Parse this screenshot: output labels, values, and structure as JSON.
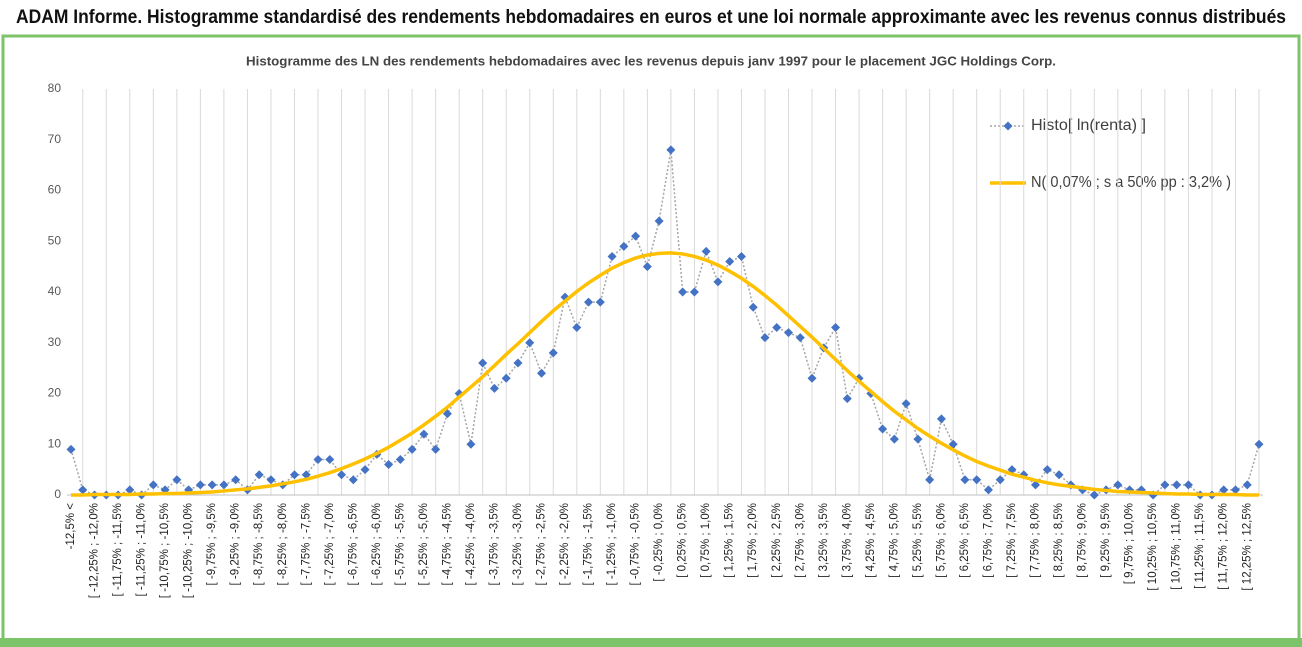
{
  "chart_data": {
    "type": "line",
    "title": "ADAM Informe. Histogramme standardisé des rendements hebdomadaires en euros et une loi normale approximante avec les revenus connus distribués",
    "subtitle": "Histogramme des LN des rendements hebdomadaires avec les revenus depuis janv 1997 pour le placement JGC Holdings Corp.",
    "categories": [
      "-12,5% <",
      null,
      "[ -12,25% ; -12,0%",
      null,
      "[ -11,75% ; -11,5%",
      null,
      "[ -11,25% ; -11,0%",
      null,
      "[ -10,75% ; -10,5%",
      null,
      "[ -10,25% ; -10,0%",
      null,
      "[ -9,75% ; -9,5%",
      null,
      "[ -9,25% ; -9,0%",
      null,
      "[ -8,75% ; -8,5%",
      null,
      "[ -8,25% ; -8,0%",
      null,
      "[ -7,75% ; -7,5%",
      null,
      "[ -7,25% ; -7,0%",
      null,
      "[ -6,75% ; -6,5%",
      null,
      "[ -6,25% ; -6,0%",
      null,
      "[ -5,75% ; -5,5%",
      null,
      "[ -5,25% ; -5,0%",
      null,
      "[ -4,75% ; -4,5%",
      null,
      "[ -4,25% ; -4,0%",
      null,
      "[ -3,75% ; -3,5%",
      null,
      "[ -3,25% ; -3,0%",
      null,
      "[ -2,75% ; -2,5%",
      null,
      "[ -2,25% ; -2,0%",
      null,
      "[ -1,75% ; -1,5%",
      null,
      "[ -1,25% ; -1,0%",
      null,
      "[ -0,75% ; -0,5%",
      null,
      "[ -0,25% ; 0,0%",
      null,
      "[ 0,25% ; 0,5%",
      null,
      "[ 0,75% ; 1,0%",
      null,
      "[ 1,25% ; 1,5%",
      null,
      "[ 1,75% ; 2,0%",
      null,
      "[ 2,25% ; 2,5%",
      null,
      "[ 2,75% ; 3,0%",
      null,
      "[ 3,25% ; 3,5%",
      null,
      "[ 3,75% ; 4,0%",
      null,
      "[ 4,25% ; 4,5%",
      null,
      "[ 4,75% ; 5,0%",
      null,
      "[ 5,25% ; 5,5%",
      null,
      "[ 5,75% ; 6,0%",
      null,
      "[ 6,25% ; 6,5%",
      null,
      "[ 6,75% ; 7,0%",
      null,
      "[ 7,25% ; 7,5%",
      null,
      "[ 7,75% ; 8,0%",
      null,
      "[ 8,25% ; 8,5%",
      null,
      "[ 8,75% ; 9,0%",
      null,
      "[ 9,25% ; 9,5%",
      null,
      "[ 9,75% ; 10,0%",
      null,
      "[ 10,25% ; 10,5%",
      null,
      "[ 10,75% ; 11,0%",
      null,
      "[ 11,25% ; 11,5%",
      null,
      "[ 11,75% ; 12,0%",
      null,
      "[ 12,25% ; 12,5%",
      null
    ],
    "series": [
      {
        "name": "Histo[ ln(renta) ]",
        "color": "#4472c4",
        "line_color": "#a6a6a6",
        "marker": "diamond",
        "values": [
          9,
          1,
          0,
          0,
          0,
          1,
          0,
          2,
          1,
          3,
          1,
          2,
          2,
          2,
          3,
          1,
          4,
          3,
          2,
          4,
          4,
          7,
          7,
          4,
          3,
          5,
          8,
          6,
          7,
          9,
          12,
          9,
          16,
          20,
          10,
          26,
          21,
          23,
          26,
          30,
          24,
          28,
          39,
          33,
          38,
          38,
          47,
          49,
          51,
          45,
          54,
          68,
          40,
          40,
          48,
          42,
          46,
          47,
          37,
          31,
          33,
          32,
          31,
          23,
          29,
          33,
          19,
          23,
          20,
          13,
          11,
          18,
          11,
          3,
          15,
          10,
          3,
          3,
          1,
          3,
          5,
          4,
          2,
          5,
          4,
          2,
          1,
          0,
          1,
          2,
          1,
          1,
          0,
          2,
          2,
          2,
          0,
          0,
          1,
          1,
          2,
          10
        ]
      },
      {
        "name": "N( 0,07% ; s a 50% pp : 3,2% )",
        "color": "#ffc000",
        "values": [
          0.0,
          0.0,
          0.1,
          0.1,
          0.1,
          0.1,
          0.2,
          0.2,
          0.3,
          0.3,
          0.4,
          0.5,
          0.6,
          0.8,
          1.0,
          1.2,
          1.5,
          1.8,
          2.2,
          2.6,
          3.1,
          3.7,
          4.4,
          5.2,
          6.1,
          7.1,
          8.2,
          9.4,
          10.8,
          12.2,
          13.8,
          15.5,
          17.3,
          19.3,
          21.3,
          23.3,
          25.5,
          27.7,
          29.8,
          32.0,
          34.2,
          36.3,
          38.2,
          40.1,
          41.8,
          43.3,
          44.7,
          45.8,
          46.7,
          47.3,
          47.6,
          47.7,
          47.5,
          47.0,
          46.3,
          45.3,
          44.1,
          42.7,
          41.1,
          39.3,
          37.4,
          35.3,
          33.2,
          31.1,
          28.9,
          26.7,
          24.5,
          22.4,
          20.4,
          18.4,
          16.5,
          14.8,
          13.1,
          11.6,
          10.2,
          8.9,
          7.7,
          6.6,
          5.7,
          4.9,
          4.1,
          3.5,
          2.9,
          2.4,
          2.0,
          1.7,
          1.4,
          1.1,
          0.9,
          0.7,
          0.6,
          0.5,
          0.4,
          0.3,
          0.2,
          0.2,
          0.1,
          0.1,
          0.1,
          0.1,
          0.0,
          0.0
        ]
      }
    ],
    "ylim": [
      0,
      80
    ],
    "yticks": [
      0,
      10,
      20,
      30,
      40,
      50,
      60,
      70,
      80
    ],
    "grid": "x",
    "legend": "top-right"
  }
}
